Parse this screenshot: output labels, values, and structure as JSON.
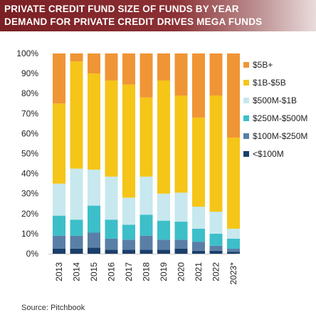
{
  "header": {
    "title_line1": "PRIVATE CREDIT FUND SIZE OF FUNDS BY YEAR",
    "title_line2": "DEMAND FOR PRIVATE CREDIT DRIVES MEGA FUNDS"
  },
  "source": "Source:  Pitchbook",
  "chart_data": {
    "type": "bar",
    "stacked": true,
    "title": "PRIVATE CREDIT FUND SIZE OF FUNDS BY YEAR",
    "subtitle": "DEMAND FOR PRIVATE CREDIT DRIVES MEGA FUNDS",
    "xlabel": "",
    "ylabel": "",
    "ylim": [
      0,
      100
    ],
    "y_ticks": [
      "0%",
      "10%",
      "20%",
      "30%",
      "40%",
      "50%",
      "60%",
      "70%",
      "80%",
      "90%",
      "100%"
    ],
    "grid": false,
    "legend_position": "right",
    "categories": [
      "2013",
      "2014",
      "2015",
      "2016",
      "2017",
      "2018",
      "2019",
      "2020",
      "2021",
      "2022",
      "2023*"
    ],
    "series": [
      {
        "name": "<$100M",
        "color": "#1b3f6b",
        "values": [
          2.5,
          2.5,
          3,
          2,
          2,
          2,
          2,
          2.5,
          1.5,
          1.5,
          1
        ]
      },
      {
        "name": "$100M-$250M",
        "color": "#5a7fa6",
        "values": [
          6.5,
          6.5,
          7.5,
          5.5,
          5,
          7,
          5,
          4.5,
          4.5,
          2.5,
          1.5
        ]
      },
      {
        "name": "$250M-$500M",
        "color": "#3cbfc9",
        "values": [
          10,
          8,
          13.5,
          9.5,
          7.5,
          10.5,
          9.5,
          9,
          6.5,
          6,
          5
        ]
      },
      {
        "name": "$500M-$1B",
        "color": "#c7e8ee",
        "values": [
          16,
          25.5,
          18,
          21.5,
          13.5,
          19,
          13.5,
          14.5,
          11,
          11,
          5
        ]
      },
      {
        "name": "$1B-$5B",
        "color": "#f5c518",
        "values": [
          40,
          53.5,
          48,
          48,
          56.5,
          39.5,
          56.5,
          48.5,
          44.5,
          58,
          45.5
        ]
      },
      {
        "name": "$5B+",
        "color": "#ef9535",
        "values": [
          25,
          4,
          10,
          13.5,
          15.5,
          22,
          13.5,
          21,
          32,
          21,
          42
        ]
      }
    ]
  }
}
